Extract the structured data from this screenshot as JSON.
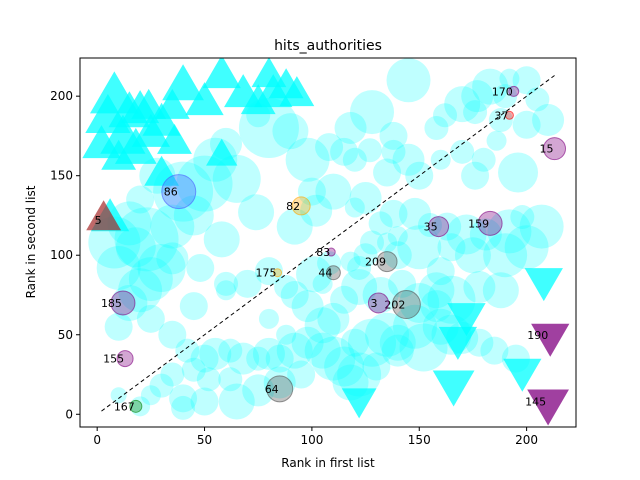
{
  "chart_data": {
    "type": "scatter",
    "title": "hits_authorities",
    "xlabel": "Rank in first list",
    "ylabel": "Rank in second list",
    "xlim": [
      -8,
      223
    ],
    "ylim": [
      -8,
      224
    ],
    "xticks": [
      0,
      50,
      100,
      150,
      200
    ],
    "yticks": [
      0,
      50,
      100,
      150,
      200
    ],
    "grid": false,
    "diagonal": {
      "from": [
        2,
        2
      ],
      "to": [
        213,
        213
      ],
      "style": "dashed",
      "color": "#000000"
    },
    "colors": {
      "background": "cyan",
      "up_triangle": "cyan",
      "down_triangle": "cyan",
      "purple": "purple",
      "brown": "brown",
      "orange": "orange",
      "red": "red",
      "green": "green",
      "gray": "black"
    },
    "background_circles": [
      [
        192,
        211,
        10
      ],
      [
        200,
        210,
        14
      ],
      [
        177,
        200,
        16
      ],
      [
        190,
        200,
        12
      ],
      [
        145,
        210,
        22
      ],
      [
        183,
        206,
        18
      ],
      [
        205,
        198,
        12
      ],
      [
        200,
        182,
        14
      ],
      [
        210,
        185,
        16
      ],
      [
        176,
        190,
        12
      ],
      [
        170,
        195,
        18
      ],
      [
        188,
        185,
        12
      ],
      [
        162,
        188,
        12
      ],
      [
        158,
        180,
        12
      ],
      [
        186,
        172,
        10
      ],
      [
        170,
        165,
        12
      ],
      [
        160,
        160,
        10
      ],
      [
        180,
        160,
        12
      ],
      [
        196,
        152,
        20
      ],
      [
        176,
        150,
        14
      ],
      [
        150,
        150,
        14
      ],
      [
        145,
        160,
        16
      ],
      [
        138,
        165,
        12
      ],
      [
        135,
        152,
        14
      ],
      [
        120,
        160,
        12
      ],
      [
        115,
        165,
        14
      ],
      [
        127,
        166,
        12
      ],
      [
        138,
        175,
        14
      ],
      [
        128,
        190,
        22
      ],
      [
        118,
        180,
        16
      ],
      [
        108,
        168,
        14
      ],
      [
        98,
        160,
        22
      ],
      [
        90,
        178,
        18
      ],
      [
        80,
        180,
        30
      ],
      [
        75,
        188,
        12
      ],
      [
        60,
        170,
        16
      ],
      [
        55,
        160,
        22
      ],
      [
        65,
        148,
        24
      ],
      [
        50,
        145,
        28
      ],
      [
        40,
        140,
        30
      ],
      [
        28,
        150,
        18
      ],
      [
        45,
        125,
        20
      ],
      [
        35,
        118,
        22
      ],
      [
        20,
        135,
        14
      ],
      [
        15,
        120,
        22
      ],
      [
        23,
        110,
        32
      ],
      [
        8,
        108,
        26
      ],
      [
        18,
        105,
        20
      ],
      [
        10,
        92,
        22
      ],
      [
        35,
        98,
        16
      ],
      [
        30,
        92,
        24
      ],
      [
        48,
        92,
        14
      ],
      [
        58,
        110,
        18
      ],
      [
        74,
        127,
        18
      ],
      [
        92,
        118,
        18
      ],
      [
        102,
        128,
        16
      ],
      [
        100,
        140,
        14
      ],
      [
        110,
        140,
        18
      ],
      [
        125,
        136,
        16
      ],
      [
        120,
        130,
        10
      ],
      [
        138,
        126,
        14
      ],
      [
        148,
        126,
        16
      ],
      [
        132,
        120,
        12
      ],
      [
        155,
        119,
        12
      ],
      [
        163,
        118,
        14
      ],
      [
        172,
        113,
        20
      ],
      [
        181,
        113,
        16
      ],
      [
        192,
        115,
        22
      ],
      [
        207,
        118,
        22
      ],
      [
        198,
        124,
        12
      ],
      [
        200,
        105,
        22
      ],
      [
        190,
        100,
        22
      ],
      [
        175,
        100,
        18
      ],
      [
        165,
        105,
        14
      ],
      [
        150,
        105,
        22
      ],
      [
        140,
        100,
        14
      ],
      [
        128,
        108,
        12
      ],
      [
        122,
        92,
        12
      ],
      [
        160,
        90,
        14
      ],
      [
        158,
        78,
        18
      ],
      [
        150,
        70,
        20
      ],
      [
        165,
        72,
        24
      ],
      [
        178,
        80,
        16
      ],
      [
        188,
        78,
        18
      ],
      [
        142,
        82,
        14
      ],
      [
        132,
        75,
        18
      ],
      [
        122,
        80,
        18
      ],
      [
        115,
        72,
        14
      ],
      [
        110,
        60,
        16
      ],
      [
        105,
        56,
        18
      ],
      [
        98,
        68,
        16
      ],
      [
        92,
        75,
        14
      ],
      [
        88,
        80,
        12
      ],
      [
        101,
        88,
        18
      ],
      [
        80,
        90,
        14
      ],
      [
        70,
        82,
        14
      ],
      [
        60,
        82,
        12
      ],
      [
        60,
        78,
        10
      ],
      [
        45,
        68,
        14
      ],
      [
        25,
        85,
        22
      ],
      [
        20,
        78,
        22
      ],
      [
        15,
        70,
        18
      ],
      [
        10,
        55,
        14
      ],
      [
        25,
        60,
        14
      ],
      [
        35,
        50,
        14
      ],
      [
        42,
        40,
        12
      ],
      [
        50,
        35,
        14
      ],
      [
        55,
        38,
        16
      ],
      [
        62,
        40,
        12
      ],
      [
        68,
        35,
        16
      ],
      [
        75,
        35,
        12
      ],
      [
        80,
        38,
        16
      ],
      [
        85,
        35,
        14
      ],
      [
        92,
        40,
        18
      ],
      [
        98,
        45,
        16
      ],
      [
        105,
        40,
        18
      ],
      [
        110,
        35,
        22
      ],
      [
        115,
        30,
        20
      ],
      [
        118,
        20,
        18
      ],
      [
        122,
        25,
        22
      ],
      [
        120,
        45,
        14
      ],
      [
        128,
        45,
        24
      ],
      [
        135,
        50,
        22
      ],
      [
        140,
        45,
        18
      ],
      [
        148,
        55,
        22
      ],
      [
        152,
        42,
        24
      ],
      [
        160,
        55,
        18
      ],
      [
        165,
        50,
        20
      ],
      [
        158,
        68,
        16
      ],
      [
        170,
        48,
        16
      ],
      [
        178,
        45,
        14
      ],
      [
        185,
        40,
        14
      ],
      [
        195,
        35,
        14
      ],
      [
        140,
        40,
        16
      ],
      [
        130,
        30,
        14
      ],
      [
        40,
        10,
        14
      ],
      [
        50,
        8,
        14
      ],
      [
        65,
        8,
        18
      ],
      [
        75,
        15,
        16
      ],
      [
        85,
        20,
        16
      ],
      [
        95,
        25,
        14
      ],
      [
        62,
        22,
        12
      ],
      [
        52,
        22,
        12
      ],
      [
        45,
        28,
        12
      ],
      [
        35,
        25,
        12
      ],
      [
        30,
        18,
        12
      ],
      [
        25,
        12,
        10
      ],
      [
        20,
        5,
        10
      ],
      [
        10,
        12,
        8
      ],
      [
        40,
        4,
        12
      ],
      [
        80,
        60,
        10
      ],
      [
        88,
        50,
        10
      ],
      [
        105,
        82,
        10
      ],
      [
        108,
        95,
        12
      ],
      [
        118,
        96,
        10
      ],
      [
        125,
        100,
        12
      ],
      [
        135,
        108,
        10
      ],
      [
        140,
        112,
        10
      ]
    ],
    "up_triangles": [
      [
        2,
        168,
        22
      ],
      [
        5,
        185,
        26
      ],
      [
        8,
        198,
        28
      ],
      [
        15,
        188,
        24
      ],
      [
        12,
        172,
        26
      ],
      [
        18,
        165,
        24
      ],
      [
        20,
        190,
        22
      ],
      [
        10,
        160,
        20
      ],
      [
        25,
        175,
        22
      ],
      [
        30,
        150,
        20
      ],
      [
        30,
        182,
        22
      ],
      [
        35,
        192,
        20
      ],
      [
        40,
        205,
        24
      ],
      [
        50,
        195,
        22
      ],
      [
        58,
        212,
        22
      ],
      [
        68,
        200,
        22
      ],
      [
        75,
        195,
        20
      ],
      [
        82,
        200,
        22
      ],
      [
        88,
        205,
        20
      ],
      [
        80,
        212,
        20
      ],
      [
        93,
        200,
        20
      ],
      [
        58,
        162,
        18
      ],
      [
        36,
        170,
        20
      ],
      [
        24,
        192,
        20
      ],
      [
        6,
        122,
        22
      ]
    ],
    "down_triangles": [
      [
        166,
        20,
        24
      ],
      [
        172,
        63,
        22
      ],
      [
        168,
        48,
        22
      ],
      [
        198,
        28,
        22
      ],
      [
        208,
        85,
        22
      ],
      [
        122,
        10,
        20
      ]
    ],
    "series": [
      {
        "name": "5",
        "marker": "up-triangle",
        "color": "brown",
        "x": 3,
        "y": 122,
        "size": 20
      },
      {
        "name": "15",
        "marker": "circle",
        "color": "purple",
        "x": 213,
        "y": 167,
        "size": 11
      },
      {
        "name": "35",
        "marker": "circle",
        "color": "purple",
        "x": 159,
        "y": 118,
        "size": 10
      },
      {
        "name": "37",
        "marker": "circle",
        "color": "red",
        "x": 192,
        "y": 188,
        "size": 4
      },
      {
        "name": "44",
        "marker": "circle",
        "color": "gray",
        "x": 110,
        "y": 89,
        "size": 7
      },
      {
        "name": "64",
        "marker": "circle",
        "color": "gray",
        "x": 85,
        "y": 16,
        "size": 13
      },
      {
        "name": "82",
        "marker": "circle",
        "color": "orange",
        "x": 95,
        "y": 131,
        "size": 9
      },
      {
        "name": "83",
        "marker": "circle",
        "color": "purple",
        "x": 109,
        "y": 102,
        "size": 4
      },
      {
        "name": "86",
        "marker": "circle",
        "color": "blue",
        "x": 38,
        "y": 140,
        "size": 17
      },
      {
        "name": "145",
        "marker": "down-triangle",
        "color": "purple",
        "x": 210,
        "y": 8,
        "size": 24
      },
      {
        "name": "155",
        "marker": "circle",
        "color": "purple",
        "x": 13,
        "y": 35,
        "size": 8
      },
      {
        "name": "159",
        "marker": "circle",
        "color": "purple",
        "x": 183,
        "y": 120,
        "size": 12
      },
      {
        "name": "167",
        "marker": "circle",
        "color": "green",
        "x": 18,
        "y": 5,
        "size": 6
      },
      {
        "name": "170",
        "marker": "circle",
        "color": "purple",
        "x": 194,
        "y": 203,
        "size": 5
      },
      {
        "name": "175",
        "marker": "circle",
        "color": "orange",
        "x": 84,
        "y": 89,
        "size": 4
      },
      {
        "name": "185",
        "marker": "circle",
        "color": "purple",
        "x": 12,
        "y": 70,
        "size": 12
      },
      {
        "name": "190",
        "marker": "down-triangle",
        "color": "purple",
        "x": 211,
        "y": 50,
        "size": 22
      },
      {
        "name": "202",
        "marker": "circle",
        "color": "gray",
        "x": 144,
        "y": 69,
        "size": 14
      },
      {
        "name": "209",
        "marker": "circle",
        "color": "gray",
        "x": 135,
        "y": 96,
        "size": 10
      },
      {
        "name": "3",
        "marker": "circle",
        "color": "purple",
        "x": 131,
        "y": 70,
        "size": 10
      }
    ]
  }
}
